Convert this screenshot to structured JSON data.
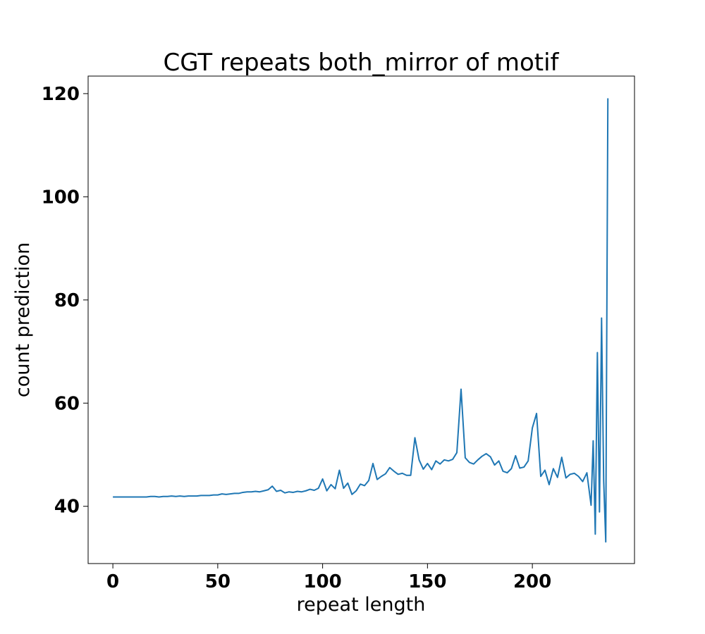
{
  "chart_data": {
    "type": "line",
    "title": "CGT repeats both_mirror of motif",
    "x_label": "repeat length",
    "y_label": "count prediction",
    "color": "#1f77b4",
    "x": [
      0,
      2,
      4,
      6,
      8,
      10,
      12,
      14,
      16,
      18,
      20,
      22,
      24,
      26,
      28,
      30,
      32,
      34,
      36,
      38,
      40,
      42,
      44,
      46,
      48,
      50,
      52,
      54,
      56,
      58,
      60,
      62,
      64,
      66,
      68,
      70,
      72,
      74,
      76,
      78,
      80,
      82,
      84,
      86,
      88,
      90,
      92,
      94,
      96,
      98,
      100,
      102,
      104,
      106,
      108,
      110,
      112,
      114,
      116,
      118,
      120,
      122,
      124,
      126,
      128,
      130,
      132,
      134,
      136,
      138,
      140,
      142,
      144,
      146,
      148,
      150,
      152,
      154,
      156,
      158,
      160,
      162,
      164,
      166,
      168,
      170,
      172,
      174,
      176,
      178,
      180,
      182,
      184,
      186,
      188,
      190,
      192,
      194,
      196,
      198,
      200,
      202,
      204,
      206,
      208,
      210,
      212,
      214,
      216,
      218,
      220,
      222,
      224,
      226,
      228,
      229,
      230,
      231,
      232,
      233,
      234,
      235,
      236
    ],
    "values": [
      41.8,
      41.8,
      41.8,
      41.8,
      41.8,
      41.8,
      41.8,
      41.8,
      41.8,
      41.9,
      41.9,
      41.8,
      41.9,
      41.9,
      42.0,
      41.9,
      42.0,
      41.9,
      42.0,
      42.0,
      42.0,
      42.1,
      42.1,
      42.1,
      42.2,
      42.2,
      42.4,
      42.3,
      42.4,
      42.5,
      42.5,
      42.7,
      42.8,
      42.8,
      42.9,
      42.8,
      43.0,
      43.2,
      43.9,
      42.9,
      43.1,
      42.6,
      42.8,
      42.7,
      42.9,
      42.8,
      43.0,
      43.3,
      43.1,
      43.5,
      45.3,
      43.0,
      44.2,
      43.4,
      47.0,
      43.5,
      44.5,
      42.3,
      43.0,
      44.3,
      44.0,
      45.0,
      48.3,
      45.2,
      45.8,
      46.3,
      47.5,
      46.8,
      46.2,
      46.4,
      46.0,
      46.0,
      53.3,
      49.0,
      47.2,
      48.3,
      47.1,
      48.8,
      48.2,
      49.0,
      48.8,
      49.1,
      50.4,
      62.7,
      49.4,
      48.5,
      48.2,
      49.0,
      49.7,
      50.2,
      49.6,
      48.0,
      48.8,
      46.8,
      46.5,
      47.3,
      49.8,
      47.4,
      47.6,
      48.8,
      55.2,
      58.0,
      45.8,
      47.0,
      44.2,
      47.3,
      45.6,
      49.5,
      45.5,
      46.2,
      46.4,
      45.8,
      44.8,
      46.5,
      40.2,
      52.7,
      34.6,
      69.8,
      38.9,
      76.5,
      45.0,
      33.1,
      119.1
    ],
    "xlim": [
      -11.8,
      248.7
    ],
    "ylim": [
      28.9,
      123.4
    ],
    "xticks": [
      0,
      50,
      100,
      150,
      200
    ],
    "yticks": [
      40,
      60,
      80,
      100,
      120
    ]
  }
}
